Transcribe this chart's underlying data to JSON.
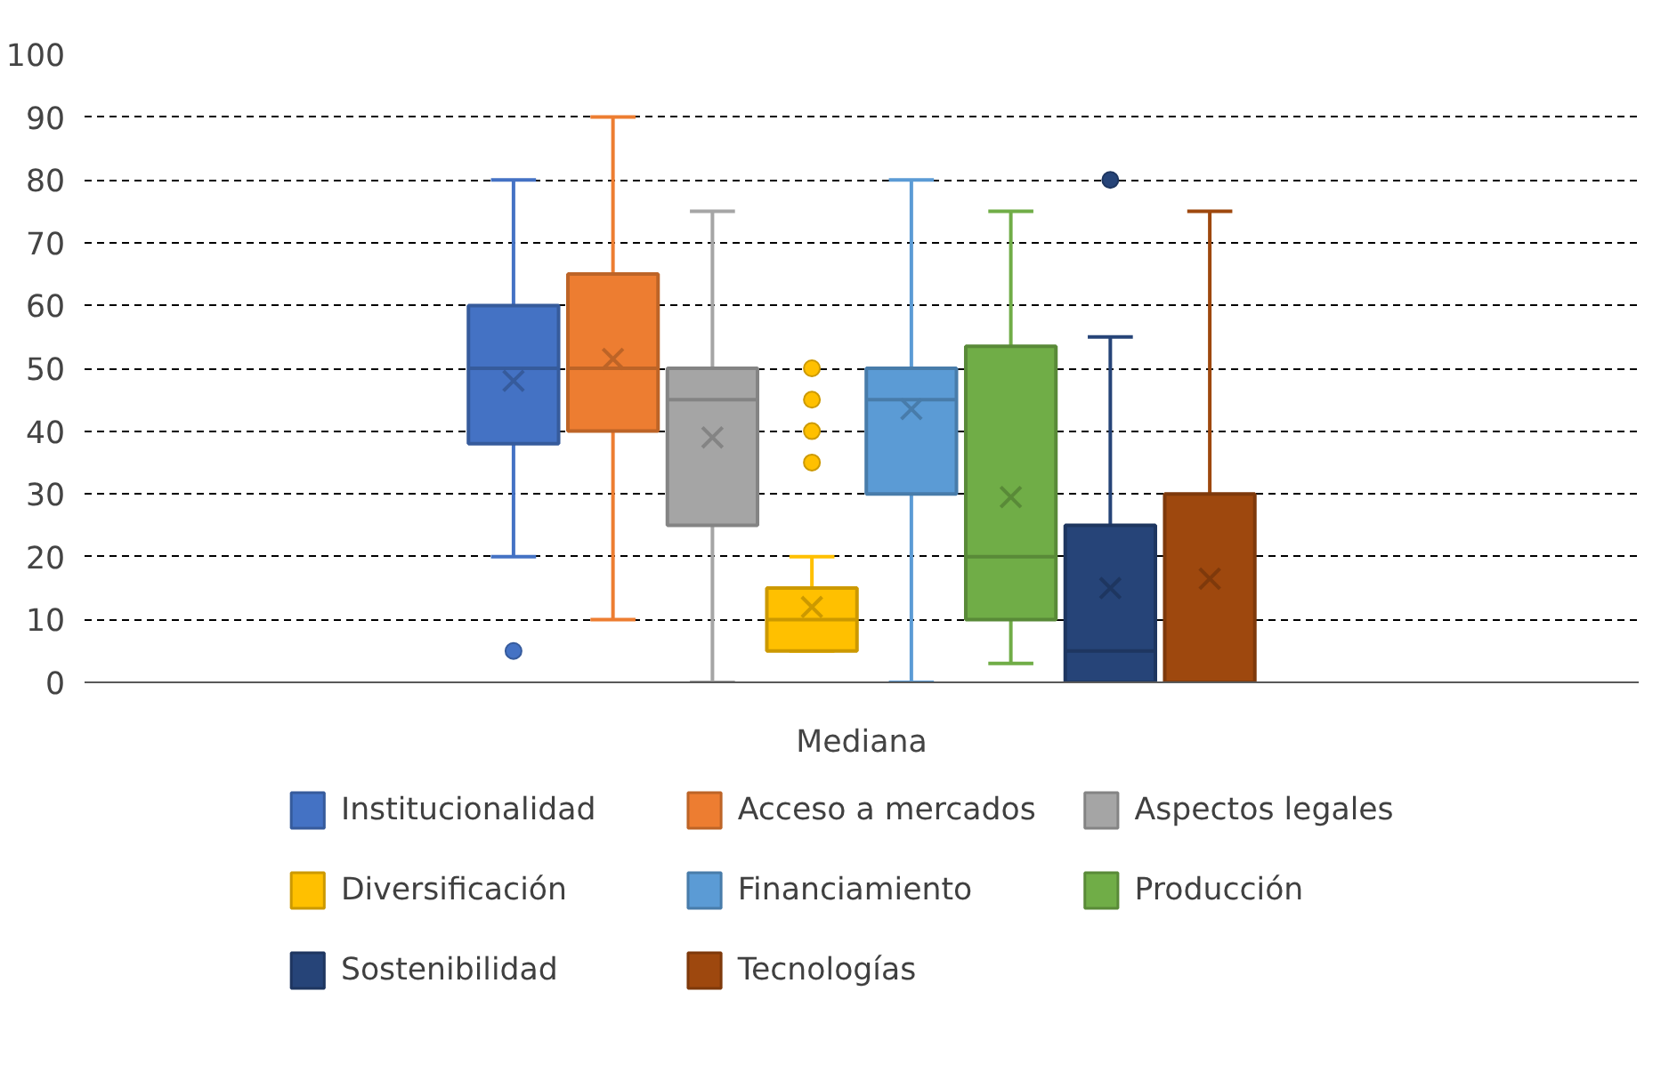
{
  "chart_data": {
    "type": "box",
    "categories": [
      "Mediana"
    ],
    "ylim": [
      0,
      100
    ],
    "yticks": [
      0,
      10,
      20,
      30,
      40,
      50,
      60,
      70,
      80,
      90,
      100
    ],
    "grid": "y",
    "legend": "bottom",
    "series": [
      {
        "name": "Institucionalidad",
        "color": "#4472c4",
        "boxes": [
          {
            "low": 20,
            "q1": 38,
            "median": 50,
            "q3": 60,
            "high": 80,
            "mean": 48,
            "outliers": [
              5
            ]
          }
        ]
      },
      {
        "name": "Acceso a mercados",
        "color": "#ed7d31",
        "boxes": [
          {
            "low": 10,
            "q1": 40,
            "median": 50,
            "q3": 65,
            "high": 90,
            "mean": 51.5
          }
        ]
      },
      {
        "name": "Aspectos legales",
        "color": "#a5a5a5",
        "boxes": [
          {
            "low": 0,
            "q1": 25,
            "median": 45,
            "q3": 50,
            "high": 75,
            "mean": 39
          }
        ]
      },
      {
        "name": "Diversificación",
        "color": "#ffc000",
        "boxes": [
          {
            "low": 5,
            "q1": 5,
            "median": 10,
            "q3": 15,
            "high": 20,
            "mean": 12,
            "outliers": [
              35,
              40,
              45,
              50
            ]
          }
        ]
      },
      {
        "name": "Financiamiento",
        "color": "#5b9bd5",
        "boxes": [
          {
            "low": 0,
            "q1": 30,
            "median": 45,
            "q3": 50,
            "high": 80,
            "mean": 43.5
          }
        ]
      },
      {
        "name": "Producción",
        "color": "#70ad47",
        "boxes": [
          {
            "low": 3,
            "q1": 10,
            "median": 20,
            "q3": 53.5,
            "high": 75,
            "mean": 29.5
          }
        ]
      },
      {
        "name": "Sostenibilidad",
        "color": "#264478",
        "boxes": [
          {
            "low": 0,
            "q1": 0,
            "median": 5,
            "q3": 25,
            "high": 55,
            "mean": 15,
            "outliers": [
              80
            ]
          }
        ]
      },
      {
        "name": "Tecnologías",
        "color": "#9e480e",
        "boxes": [
          {
            "low": 0,
            "q1": 0,
            "median": 0,
            "q3": 30,
            "high": 75,
            "mean": 16.5
          }
        ]
      }
    ]
  }
}
